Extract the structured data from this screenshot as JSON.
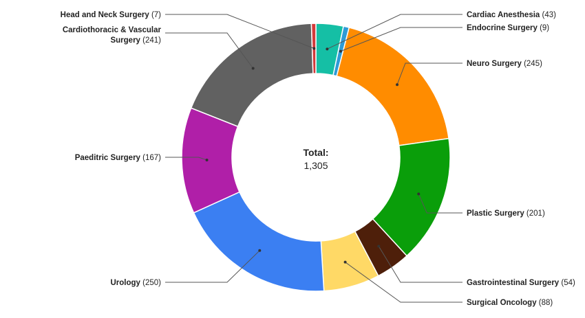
{
  "chart_data": {
    "type": "pie",
    "variant": "donut",
    "title": "",
    "center_label": {
      "title": "Total:",
      "value": "1,305"
    },
    "legend": "none",
    "slices": [
      {
        "name": "Cardiac Anesthesia",
        "label": "Cardiac Anesthesia",
        "value": 43,
        "value_text": "(43)",
        "color": "#15BFA5"
      },
      {
        "name": "Endocrine Surgery",
        "label": "Endocrine Surgery",
        "value": 9,
        "value_text": "(9)",
        "color": "#2E9BD6"
      },
      {
        "name": "Neuro Surgery",
        "label": "Neuro Surgery",
        "value": 245,
        "value_text": "(245)",
        "color": "#FF8C00"
      },
      {
        "name": "Plastic Surgery",
        "label": "Plastic Surgery",
        "value": 201,
        "value_text": "(201)",
        "color": "#0A9E0A"
      },
      {
        "name": "Gastrointestinal Surgery",
        "label": "Gastrointestinal Surgery",
        "value": 54,
        "value_text": "(54)",
        "color": "#4E1F0A"
      },
      {
        "name": "Surgical Oncology",
        "label": "Surgical Oncology",
        "value": 88,
        "value_text": "(88)",
        "color": "#FFD966"
      },
      {
        "name": "Urology",
        "label": "Urology",
        "value": 250,
        "value_text": "(250)",
        "color": "#3B7FF2"
      },
      {
        "name": "Paeditric Surgery",
        "label": "Paeditric Surgery",
        "value": 167,
        "value_text": "(167)",
        "color": "#B01FA8"
      },
      {
        "name": "Cardiothoracic & Vascular Surgery",
        "label": "Cardiothoracic & Vascular|Surgery",
        "value": 241,
        "value_text": "(241)",
        "color": "#616161"
      },
      {
        "name": "Head and Neck Surgery",
        "label": "Head and Neck Surgery",
        "value": 7,
        "value_text": "(7)",
        "color": "#D23A3A"
      }
    ]
  }
}
